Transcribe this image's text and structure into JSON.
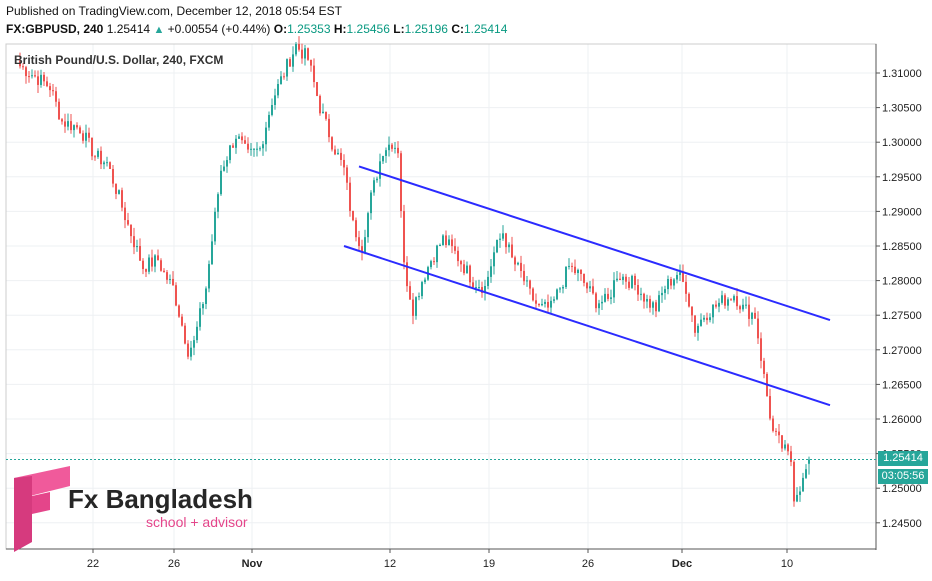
{
  "header": {
    "published": "Published on TradingView.com, December 12, 2018 05:54 EST",
    "symbol": "FX:GBPUSD, 240",
    "last": "1.25414",
    "change": "+0.00554 (+0.44%)",
    "o_label": "O:",
    "o_value": "1.25353",
    "h_label": "H:",
    "h_value": "1.25456",
    "l_label": "L:",
    "l_value": "1.25196",
    "c_label": "C:",
    "c_value": "1.25414"
  },
  "chart": {
    "instrument": "British Pound/U.S. Dollar, 240, FXCM",
    "last_price_label": "1.25414",
    "countdown_label": "03:05:56"
  },
  "logo": {
    "name": "Fx Bangladesh",
    "tagline": "school + advisor"
  },
  "colors": {
    "up": "#26a69a",
    "down": "#ef5350",
    "channel": "#2b2bff",
    "last_price_line": "#26a69a",
    "logo_accent": "#e4458a"
  },
  "chart_data": {
    "type": "candlestick",
    "title": "British Pound/U.S. Dollar, 240, FXCM",
    "x_tick_labels": [
      "22",
      "26",
      "Nov",
      "12",
      "19",
      "26",
      "Dec",
      "10"
    ],
    "y_tick_labels": [
      "1.31000",
      "1.30500",
      "1.30000",
      "1.29500",
      "1.29000",
      "1.28500",
      "1.28000",
      "1.27500",
      "1.27000",
      "1.26500",
      "1.26000",
      "1.25500",
      "1.25000",
      "1.24500"
    ],
    "ylim": [
      1.2435,
      1.3145
    ],
    "grid": true,
    "close_path": [
      [
        0,
        1.311
      ],
      [
        10,
        1.308
      ],
      [
        14,
        1.303
      ],
      [
        20,
        1.302
      ],
      [
        25,
        1.298
      ],
      [
        29,
        1.297
      ],
      [
        33,
        1.292
      ],
      [
        36,
        1.288
      ],
      [
        41,
        1.282
      ],
      [
        46,
        1.283
      ],
      [
        48,
        1.281
      ],
      [
        51,
        1.279
      ],
      [
        56,
        1.27
      ],
      [
        58,
        1.271
      ],
      [
        62,
        1.279
      ],
      [
        67,
        1.296
      ],
      [
        72,
        1.301
      ],
      [
        76,
        1.298
      ],
      [
        80,
        1.299
      ],
      [
        84,
        1.306
      ],
      [
        89,
        1.311
      ],
      [
        92,
        1.314
      ],
      [
        96,
        1.312
      ],
      [
        100,
        1.305
      ],
      [
        104,
        1.3
      ],
      [
        108,
        1.296
      ],
      [
        111,
        1.288
      ],
      [
        114,
        1.285
      ],
      [
        117,
        1.292
      ],
      [
        121,
        1.299
      ],
      [
        124,
        1.3
      ],
      [
        126,
        1.299
      ],
      [
        128,
        1.282
      ],
      [
        131,
        1.276
      ],
      [
        134,
        1.28
      ],
      [
        137,
        1.283
      ],
      [
        141,
        1.286
      ],
      [
        145,
        1.284
      ],
      [
        148,
        1.282
      ],
      [
        151,
        1.28
      ],
      [
        155,
        1.279
      ],
      [
        158,
        1.284
      ],
      [
        161,
        1.287
      ],
      [
        164,
        1.283
      ],
      [
        167,
        1.281
      ],
      [
        170,
        1.278
      ],
      [
        173,
        1.276
      ],
      [
        177,
        1.276
      ],
      [
        180,
        1.279
      ],
      [
        183,
        1.282
      ],
      [
        186,
        1.281
      ],
      [
        189,
        1.279
      ],
      [
        192,
        1.277
      ],
      [
        196,
        1.277
      ],
      [
        199,
        1.281
      ],
      [
        203,
        1.28
      ],
      [
        206,
        1.279
      ],
      [
        209,
        1.277
      ],
      [
        212,
        1.276
      ],
      [
        215,
        1.279
      ],
      [
        219,
        1.281
      ],
      [
        222,
        1.279
      ],
      [
        225,
        1.273
      ],
      [
        228,
        1.275
      ],
      [
        231,
        1.276
      ],
      [
        234,
        1.277
      ],
      [
        238,
        1.278
      ],
      [
        241,
        1.276
      ],
      [
        245,
        1.275
      ],
      [
        248,
        1.266
      ],
      [
        251,
        1.258
      ],
      [
        254,
        1.256
      ],
      [
        257,
        1.254
      ],
      [
        258,
        1.249
      ],
      [
        261,
        1.251
      ],
      [
        263,
        1.2541
      ]
    ],
    "channel_lines": [
      {
        "name": "upper",
        "points": [
          [
            113,
            1.2965
          ],
          [
            270,
            1.2743
          ]
        ]
      },
      {
        "name": "lower",
        "points": [
          [
            108,
            1.285
          ],
          [
            270,
            1.262
          ]
        ]
      }
    ],
    "last_price": 1.25414
  }
}
